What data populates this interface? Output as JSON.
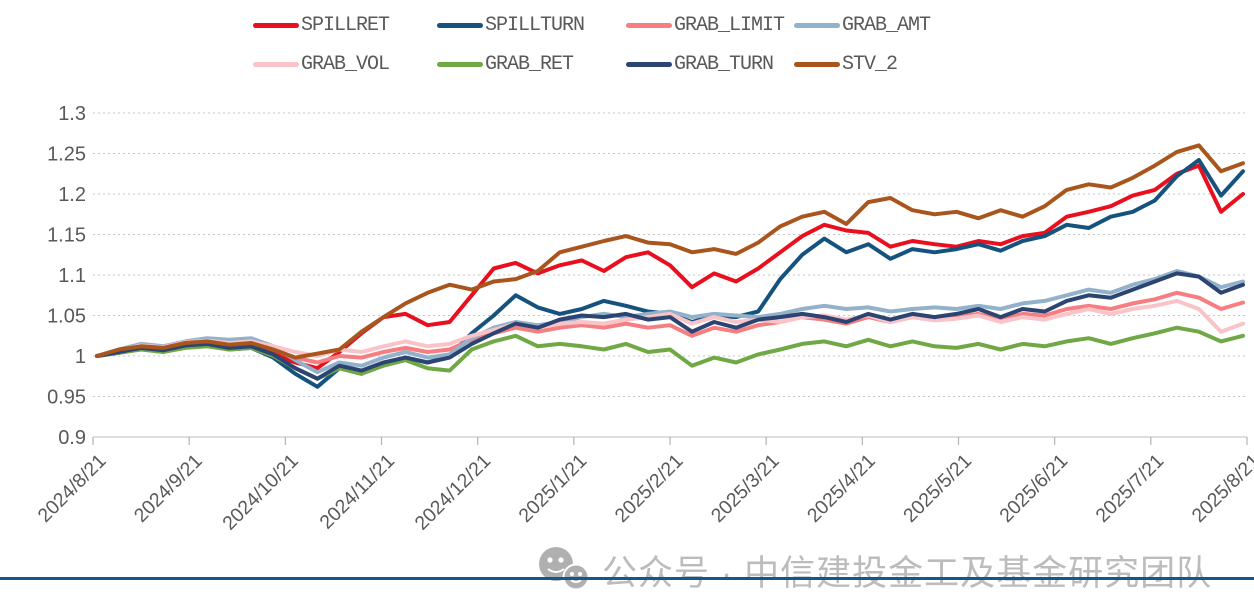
{
  "legend": {
    "items": [
      {
        "label": "SPILLRET",
        "color": "#e8101e"
      },
      {
        "label": "SPILLTURN",
        "color": "#16527e"
      },
      {
        "label": "GRAB_LIMIT",
        "color": "#f67d80"
      },
      {
        "label": "GRAB_AMT",
        "color": "#92b1cb"
      },
      {
        "label": "GRAB_VOL",
        "color": "#f9c3c8"
      },
      {
        "label": "GRAB_RET",
        "color": "#70a845"
      },
      {
        "label": "GRAB_TURN",
        "color": "#2c4472"
      },
      {
        "label": "STV_2",
        "color": "#a8561d"
      }
    ]
  },
  "chart_data": {
    "type": "line",
    "title": "",
    "xlabel": "",
    "ylabel": "",
    "ylim": [
      0.9,
      1.3
    ],
    "grid": "horizontal dotted",
    "legend_position": "top",
    "x_label_rotation": -45,
    "x_tick_labels": [
      "2024/8/21",
      "2024/9/21",
      "2024/10/21",
      "2024/11/21",
      "2024/12/21",
      "2025/1/21",
      "2025/2/21",
      "2025/3/21",
      "2025/4/21",
      "2025/5/21",
      "2025/6/21",
      "2025/7/21",
      "2025/8/21"
    ],
    "y_ticks": [
      1.3,
      1.25,
      1.2,
      1.15,
      1.1,
      1.05,
      1,
      0.95,
      0.9
    ],
    "y_tick_labels": [
      "1.3",
      "1.25",
      "1.2",
      "1.15",
      "1.1",
      "1.05",
      "1",
      "0.95",
      "0.9"
    ],
    "x_unit": "weekly samples from 2024/8/21 to 2025/8/21",
    "series": [
      {
        "name": "SPILLRET",
        "color": "#e8101e",
        "values": [
          1.0,
          1.006,
          1.01,
          1.008,
          1.013,
          1.015,
          1.01,
          1.012,
          1.003,
          0.992,
          0.985,
          1.005,
          1.028,
          1.048,
          1.052,
          1.038,
          1.042,
          1.075,
          1.108,
          1.115,
          1.102,
          1.112,
          1.118,
          1.105,
          1.122,
          1.128,
          1.112,
          1.085,
          1.102,
          1.092,
          1.108,
          1.128,
          1.148,
          1.162,
          1.155,
          1.152,
          1.135,
          1.142,
          1.138,
          1.135,
          1.142,
          1.138,
          1.148,
          1.152,
          1.172,
          1.178,
          1.185,
          1.198,
          1.205,
          1.225,
          1.235,
          1.178,
          1.2
        ]
      },
      {
        "name": "SPILLTURN",
        "color": "#16527e",
        "values": [
          1.0,
          1.004,
          1.009,
          1.006,
          1.012,
          1.013,
          1.008,
          1.01,
          0.998,
          0.978,
          0.962,
          0.985,
          0.978,
          0.99,
          0.998,
          0.992,
          1.0,
          1.028,
          1.05,
          1.075,
          1.06,
          1.052,
          1.058,
          1.068,
          1.062,
          1.055,
          1.052,
          1.042,
          1.05,
          1.048,
          1.055,
          1.095,
          1.125,
          1.145,
          1.128,
          1.138,
          1.12,
          1.132,
          1.128,
          1.132,
          1.138,
          1.13,
          1.142,
          1.148,
          1.162,
          1.158,
          1.172,
          1.178,
          1.192,
          1.222,
          1.242,
          1.198,
          1.228
        ]
      },
      {
        "name": "GRAB_LIMIT",
        "color": "#f67d80",
        "values": [
          1.0,
          1.006,
          1.012,
          1.01,
          1.016,
          1.018,
          1.015,
          1.016,
          1.008,
          0.998,
          0.992,
          1.0,
          0.998,
          1.005,
          1.01,
          1.005,
          1.008,
          1.02,
          1.028,
          1.035,
          1.03,
          1.035,
          1.038,
          1.035,
          1.04,
          1.035,
          1.038,
          1.025,
          1.035,
          1.03,
          1.038,
          1.042,
          1.048,
          1.045,
          1.04,
          1.048,
          1.042,
          1.048,
          1.045,
          1.048,
          1.052,
          1.045,
          1.052,
          1.05,
          1.058,
          1.062,
          1.058,
          1.065,
          1.07,
          1.078,
          1.072,
          1.058,
          1.066
        ]
      },
      {
        "name": "GRAB_AMT",
        "color": "#92b1cb",
        "values": [
          1.0,
          1.008,
          1.015,
          1.012,
          1.018,
          1.022,
          1.02,
          1.022,
          1.012,
          0.995,
          0.98,
          0.992,
          0.988,
          0.998,
          1.005,
          0.998,
          1.002,
          1.022,
          1.035,
          1.042,
          1.038,
          1.042,
          1.048,
          1.052,
          1.048,
          1.052,
          1.055,
          1.048,
          1.052,
          1.05,
          1.048,
          1.052,
          1.058,
          1.062,
          1.058,
          1.06,
          1.055,
          1.058,
          1.06,
          1.058,
          1.062,
          1.058,
          1.065,
          1.068,
          1.075,
          1.082,
          1.078,
          1.088,
          1.095,
          1.105,
          1.098,
          1.085,
          1.092
        ]
      },
      {
        "name": "GRAB_VOL",
        "color": "#f9c3c8",
        "values": [
          1.0,
          1.007,
          1.013,
          1.011,
          1.017,
          1.019,
          1.016,
          1.018,
          1.012,
          1.005,
          1.0,
          1.008,
          1.005,
          1.012,
          1.018,
          1.012,
          1.015,
          1.025,
          1.032,
          1.04,
          1.035,
          1.04,
          1.042,
          1.04,
          1.045,
          1.048,
          1.052,
          1.04,
          1.048,
          1.042,
          1.045,
          1.042,
          1.048,
          1.05,
          1.045,
          1.05,
          1.042,
          1.048,
          1.044,
          1.046,
          1.05,
          1.042,
          1.048,
          1.045,
          1.052,
          1.058,
          1.052,
          1.058,
          1.062,
          1.068,
          1.058,
          1.03,
          1.04
        ]
      },
      {
        "name": "GRAB_RET",
        "color": "#70a845",
        "values": [
          1.0,
          1.004,
          1.008,
          1.005,
          1.01,
          1.012,
          1.008,
          1.01,
          1.0,
          0.985,
          0.972,
          0.985,
          0.978,
          0.988,
          0.995,
          0.985,
          0.982,
          1.008,
          1.018,
          1.025,
          1.012,
          1.015,
          1.012,
          1.008,
          1.015,
          1.005,
          1.008,
          0.988,
          0.998,
          0.992,
          1.002,
          1.008,
          1.015,
          1.018,
          1.012,
          1.02,
          1.012,
          1.018,
          1.012,
          1.01,
          1.015,
          1.008,
          1.015,
          1.012,
          1.018,
          1.022,
          1.015,
          1.022,
          1.028,
          1.035,
          1.03,
          1.018,
          1.025
        ]
      },
      {
        "name": "GRAB_TURN",
        "color": "#2c4472",
        "values": [
          1.0,
          1.005,
          1.01,
          1.007,
          1.013,
          1.015,
          1.01,
          1.012,
          1.002,
          0.985,
          0.972,
          0.988,
          0.982,
          0.992,
          0.998,
          0.992,
          0.998,
          1.015,
          1.028,
          1.04,
          1.035,
          1.045,
          1.05,
          1.048,
          1.052,
          1.045,
          1.048,
          1.03,
          1.042,
          1.035,
          1.045,
          1.048,
          1.052,
          1.048,
          1.042,
          1.052,
          1.045,
          1.052,
          1.048,
          1.052,
          1.058,
          1.048,
          1.058,
          1.055,
          1.068,
          1.075,
          1.072,
          1.082,
          1.092,
          1.102,
          1.098,
          1.078,
          1.088
        ]
      },
      {
        "name": "STV_2",
        "color": "#a8561d",
        "values": [
          1.0,
          1.008,
          1.012,
          1.01,
          1.016,
          1.018,
          1.014,
          1.016,
          1.008,
          0.998,
          1.003,
          1.008,
          1.03,
          1.048,
          1.065,
          1.078,
          1.088,
          1.082,
          1.092,
          1.095,
          1.105,
          1.128,
          1.135,
          1.142,
          1.148,
          1.14,
          1.138,
          1.128,
          1.132,
          1.126,
          1.14,
          1.16,
          1.172,
          1.178,
          1.163,
          1.19,
          1.195,
          1.18,
          1.175,
          1.178,
          1.17,
          1.18,
          1.172,
          1.185,
          1.205,
          1.212,
          1.208,
          1.22,
          1.235,
          1.252,
          1.26,
          1.228,
          1.238
        ]
      }
    ]
  },
  "style_colors": {
    "axis_text": "#595959",
    "grid_line": "#c6c6c6",
    "axis_line": "#d4d4d4",
    "tick_mark": "#b3b3b3",
    "footer_line": "#17568a",
    "watermark": "#bcbcbc"
  },
  "watermark": {
    "icon": "wechat-icon",
    "text": "公众号 · 中信建投金工及基金研究团队"
  }
}
